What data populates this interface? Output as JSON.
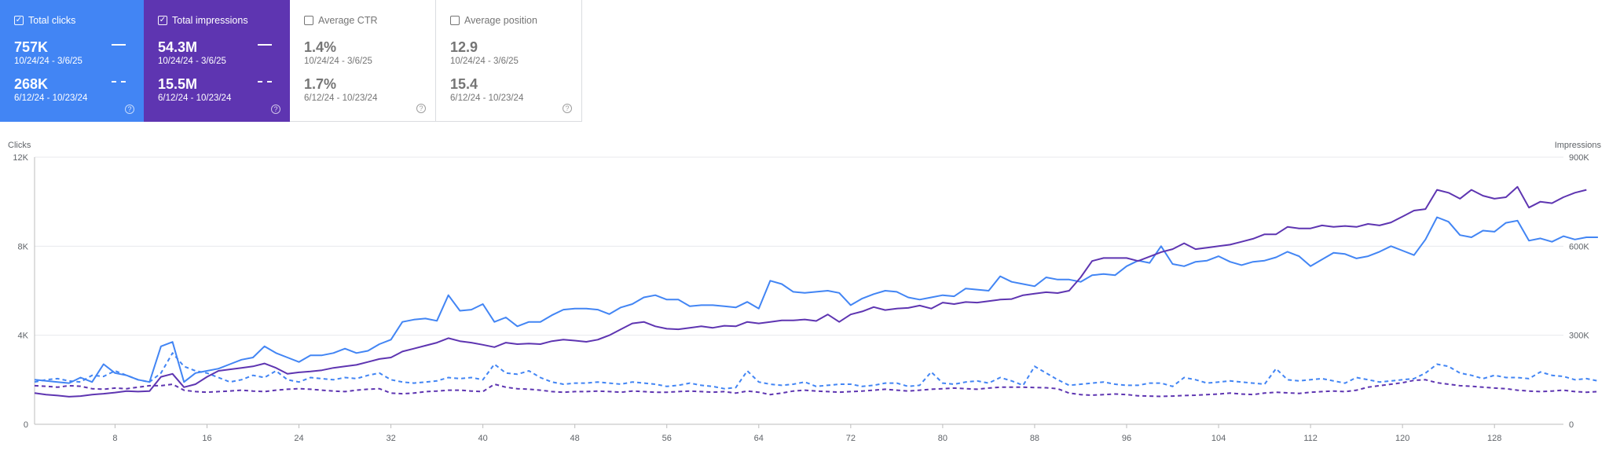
{
  "cards": [
    {
      "label": "Total clicks",
      "checked": true,
      "color": "#4285f4",
      "current": {
        "value": "757K",
        "range": "10/24/24 - 3/6/25"
      },
      "previous": {
        "value": "268K",
        "range": "6/12/24 - 10/23/24"
      }
    },
    {
      "label": "Total impressions",
      "checked": true,
      "color": "#5e35b1",
      "current": {
        "value": "54.3M",
        "range": "10/24/24 - 3/6/25"
      },
      "previous": {
        "value": "15.5M",
        "range": "6/12/24 - 10/23/24"
      }
    },
    {
      "label": "Average CTR",
      "checked": false,
      "color": "#ffffff",
      "current": {
        "value": "1.4%",
        "range": "10/24/24 - 3/6/25"
      },
      "previous": {
        "value": "1.7%",
        "range": "6/12/24 - 10/23/24"
      }
    },
    {
      "label": "Average position",
      "checked": false,
      "color": "#ffffff",
      "current": {
        "value": "12.9",
        "range": "10/24/24 - 3/6/25"
      },
      "previous": {
        "value": "15.4",
        "range": "6/12/24 - 10/23/24"
      }
    }
  ],
  "chart_data": {
    "type": "line",
    "y_left_label": "Clicks",
    "y_right_label": "Impressions",
    "y_left_ticks": [
      "12K",
      "8K",
      "4K",
      "0"
    ],
    "y_right_ticks": [
      "900K",
      "600K",
      "300K",
      "0"
    ],
    "y_left_range": [
      0,
      12000
    ],
    "y_right_range": [
      0,
      900000
    ],
    "x_ticks": [
      8,
      16,
      24,
      32,
      40,
      48,
      56,
      64,
      72,
      80,
      88,
      96,
      104,
      112,
      120,
      128
    ],
    "x_range": [
      1,
      134
    ],
    "grid": true,
    "colors": {
      "clicks": "#4285f4",
      "impressions": "#5e35b1"
    },
    "series": [
      {
        "name": "Total clicks",
        "period": "10/24/24 - 3/6/25",
        "axis": "left",
        "style": "solid",
        "color": "#4285f4",
        "values": [
          2000,
          1950,
          1900,
          1850,
          2100,
          1900,
          2700,
          2300,
          2200,
          2000,
          1900,
          3500,
          3700,
          1900,
          2300,
          2400,
          2500,
          2700,
          2900,
          3000,
          3500,
          3200,
          3000,
          2800,
          3100,
          3100,
          3200,
          3400,
          3200,
          3300,
          3600,
          3800,
          4600,
          4700,
          4750,
          4650,
          5800,
          5100,
          5150,
          5400,
          4600,
          4800,
          4400,
          4600,
          4600,
          4900,
          5150,
          5200,
          5200,
          5150,
          4950,
          5250,
          5400,
          5700,
          5800,
          5600,
          5600,
          5300,
          5350,
          5350,
          5300,
          5250,
          5500,
          5200,
          6450,
          6300,
          5950,
          5900,
          5950,
          6000,
          5900,
          5350,
          5650,
          5850,
          6000,
          5950,
          5700,
          5600,
          5700,
          5800,
          5750,
          6100,
          6050,
          6000,
          6650,
          6400,
          6300,
          6200,
          6600,
          6500,
          6500,
          6400,
          6700,
          6750,
          6700,
          7100,
          7350,
          7250,
          8000,
          7200,
          7100,
          7300,
          7350,
          7550,
          7300,
          7150,
          7300,
          7350,
          7500,
          7750,
          7550,
          7100,
          7400,
          7700,
          7650,
          7450,
          7550,
          7750,
          8000,
          7800,
          7600,
          8300,
          9300,
          9100,
          8500,
          8400,
          8700,
          8650,
          9050,
          9150,
          8250,
          8350,
          8200,
          8450,
          8300,
          8400,
          8400
        ]
      },
      {
        "name": "Total clicks",
        "period": "6/12/24 - 10/23/24",
        "axis": "left",
        "style": "dashed",
        "color": "#4285f4",
        "values": [
          1900,
          2000,
          2050,
          1950,
          1900,
          2200,
          2150,
          2400,
          2200,
          2000,
          1900,
          2300,
          3200,
          2600,
          2400,
          2300,
          2100,
          1900,
          2000,
          2200,
          2100,
          2400,
          2000,
          1900,
          2100,
          2050,
          2000,
          2100,
          2050,
          2200,
          2300,
          2000,
          1900,
          1850,
          1900,
          1950,
          2100,
          2050,
          2100,
          2000,
          2700,
          2300,
          2250,
          2400,
          2100,
          1900,
          1800,
          1850,
          1850,
          1900,
          1850,
          1800,
          1900,
          1850,
          1800,
          1700,
          1750,
          1850,
          1750,
          1700,
          1600,
          1650,
          2400,
          1900,
          1800,
          1750,
          1800,
          1900,
          1700,
          1750,
          1800,
          1800,
          1700,
          1750,
          1850,
          1850,
          1700,
          1750,
          2350,
          1850,
          1800,
          1900,
          1950,
          1850,
          2100,
          1950,
          1750,
          2600,
          2300,
          2000,
          1750,
          1800,
          1850,
          1900,
          1800,
          1750,
          1750,
          1850,
          1850,
          1700,
          2100,
          2000,
          1850,
          1900,
          1950,
          1900,
          1850,
          1800,
          2500,
          2000,
          1950,
          2000,
          2050,
          1950,
          1850,
          2100,
          2000,
          1900,
          1950,
          2000,
          2050,
          2300,
          2700,
          2600,
          2300,
          2200,
          2050,
          2200,
          2100,
          2100,
          2050,
          2350,
          2200,
          2150,
          2000,
          2050,
          1950
        ]
      },
      {
        "name": "Total impressions",
        "period": "10/24/24 - 3/6/25",
        "axis": "right",
        "style": "solid",
        "color": "#5e35b1",
        "values": [
          105000,
          100000,
          97000,
          93000,
          95000,
          100000,
          103000,
          107000,
          112000,
          110000,
          112000,
          160000,
          170000,
          125000,
          135000,
          160000,
          180000,
          185000,
          190000,
          195000,
          205000,
          190000,
          170000,
          175000,
          178000,
          182000,
          190000,
          195000,
          200000,
          210000,
          220000,
          225000,
          245000,
          255000,
          265000,
          275000,
          290000,
          280000,
          275000,
          268000,
          260000,
          275000,
          270000,
          272000,
          270000,
          280000,
          285000,
          282000,
          278000,
          285000,
          300000,
          320000,
          340000,
          345000,
          330000,
          322000,
          320000,
          325000,
          330000,
          325000,
          332000,
          330000,
          345000,
          340000,
          345000,
          350000,
          350000,
          353000,
          348000,
          370000,
          345000,
          370000,
          380000,
          395000,
          385000,
          390000,
          392000,
          400000,
          390000,
          410000,
          405000,
          412000,
          410000,
          415000,
          420000,
          422000,
          435000,
          440000,
          445000,
          442000,
          450000,
          495000,
          550000,
          560000,
          560000,
          560000,
          550000,
          565000,
          580000,
          590000,
          610000,
          590000,
          595000,
          600000,
          605000,
          615000,
          625000,
          640000,
          640000,
          665000,
          660000,
          660000,
          670000,
          665000,
          668000,
          665000,
          675000,
          670000,
          680000,
          700000,
          720000,
          725000,
          790000,
          780000,
          760000,
          790000,
          770000,
          760000,
          765000,
          800000,
          730000,
          750000,
          745000,
          765000,
          780000,
          790000
        ]
      },
      {
        "name": "Total impressions",
        "period": "6/12/24 - 10/23/24",
        "axis": "right",
        "style": "dashed",
        "color": "#5e35b1",
        "values": [
          130000,
          128000,
          125000,
          130000,
          128000,
          120000,
          118000,
          122000,
          120000,
          125000,
          130000,
          130000,
          135000,
          115000,
          110000,
          108000,
          110000,
          112000,
          115000,
          112000,
          110000,
          115000,
          118000,
          120000,
          118000,
          115000,
          112000,
          110000,
          115000,
          118000,
          120000,
          105000,
          103000,
          105000,
          110000,
          112000,
          115000,
          115000,
          112000,
          110000,
          135000,
          125000,
          120000,
          118000,
          115000,
          110000,
          108000,
          110000,
          110000,
          112000,
          110000,
          108000,
          112000,
          110000,
          108000,
          108000,
          110000,
          112000,
          110000,
          108000,
          110000,
          105000,
          112000,
          108000,
          100000,
          105000,
          112000,
          115000,
          112000,
          110000,
          108000,
          110000,
          112000,
          115000,
          118000,
          115000,
          112000,
          115000,
          118000,
          120000,
          122000,
          120000,
          118000,
          122000,
          125000,
          125000,
          125000,
          124000,
          123000,
          120000,
          105000,
          100000,
          98000,
          100000,
          102000,
          100000,
          96000,
          95000,
          94000,
          95000,
          97000,
          98000,
          100000,
          102000,
          105000,
          102000,
          100000,
          105000,
          108000,
          106000,
          104000,
          108000,
          110000,
          112000,
          110000,
          115000,
          125000,
          130000,
          135000,
          140000,
          148000,
          150000,
          140000,
          135000,
          130000,
          128000,
          125000,
          122000,
          120000,
          115000,
          112000,
          110000,
          112000,
          115000,
          110000,
          108000,
          110000
        ]
      }
    ]
  }
}
